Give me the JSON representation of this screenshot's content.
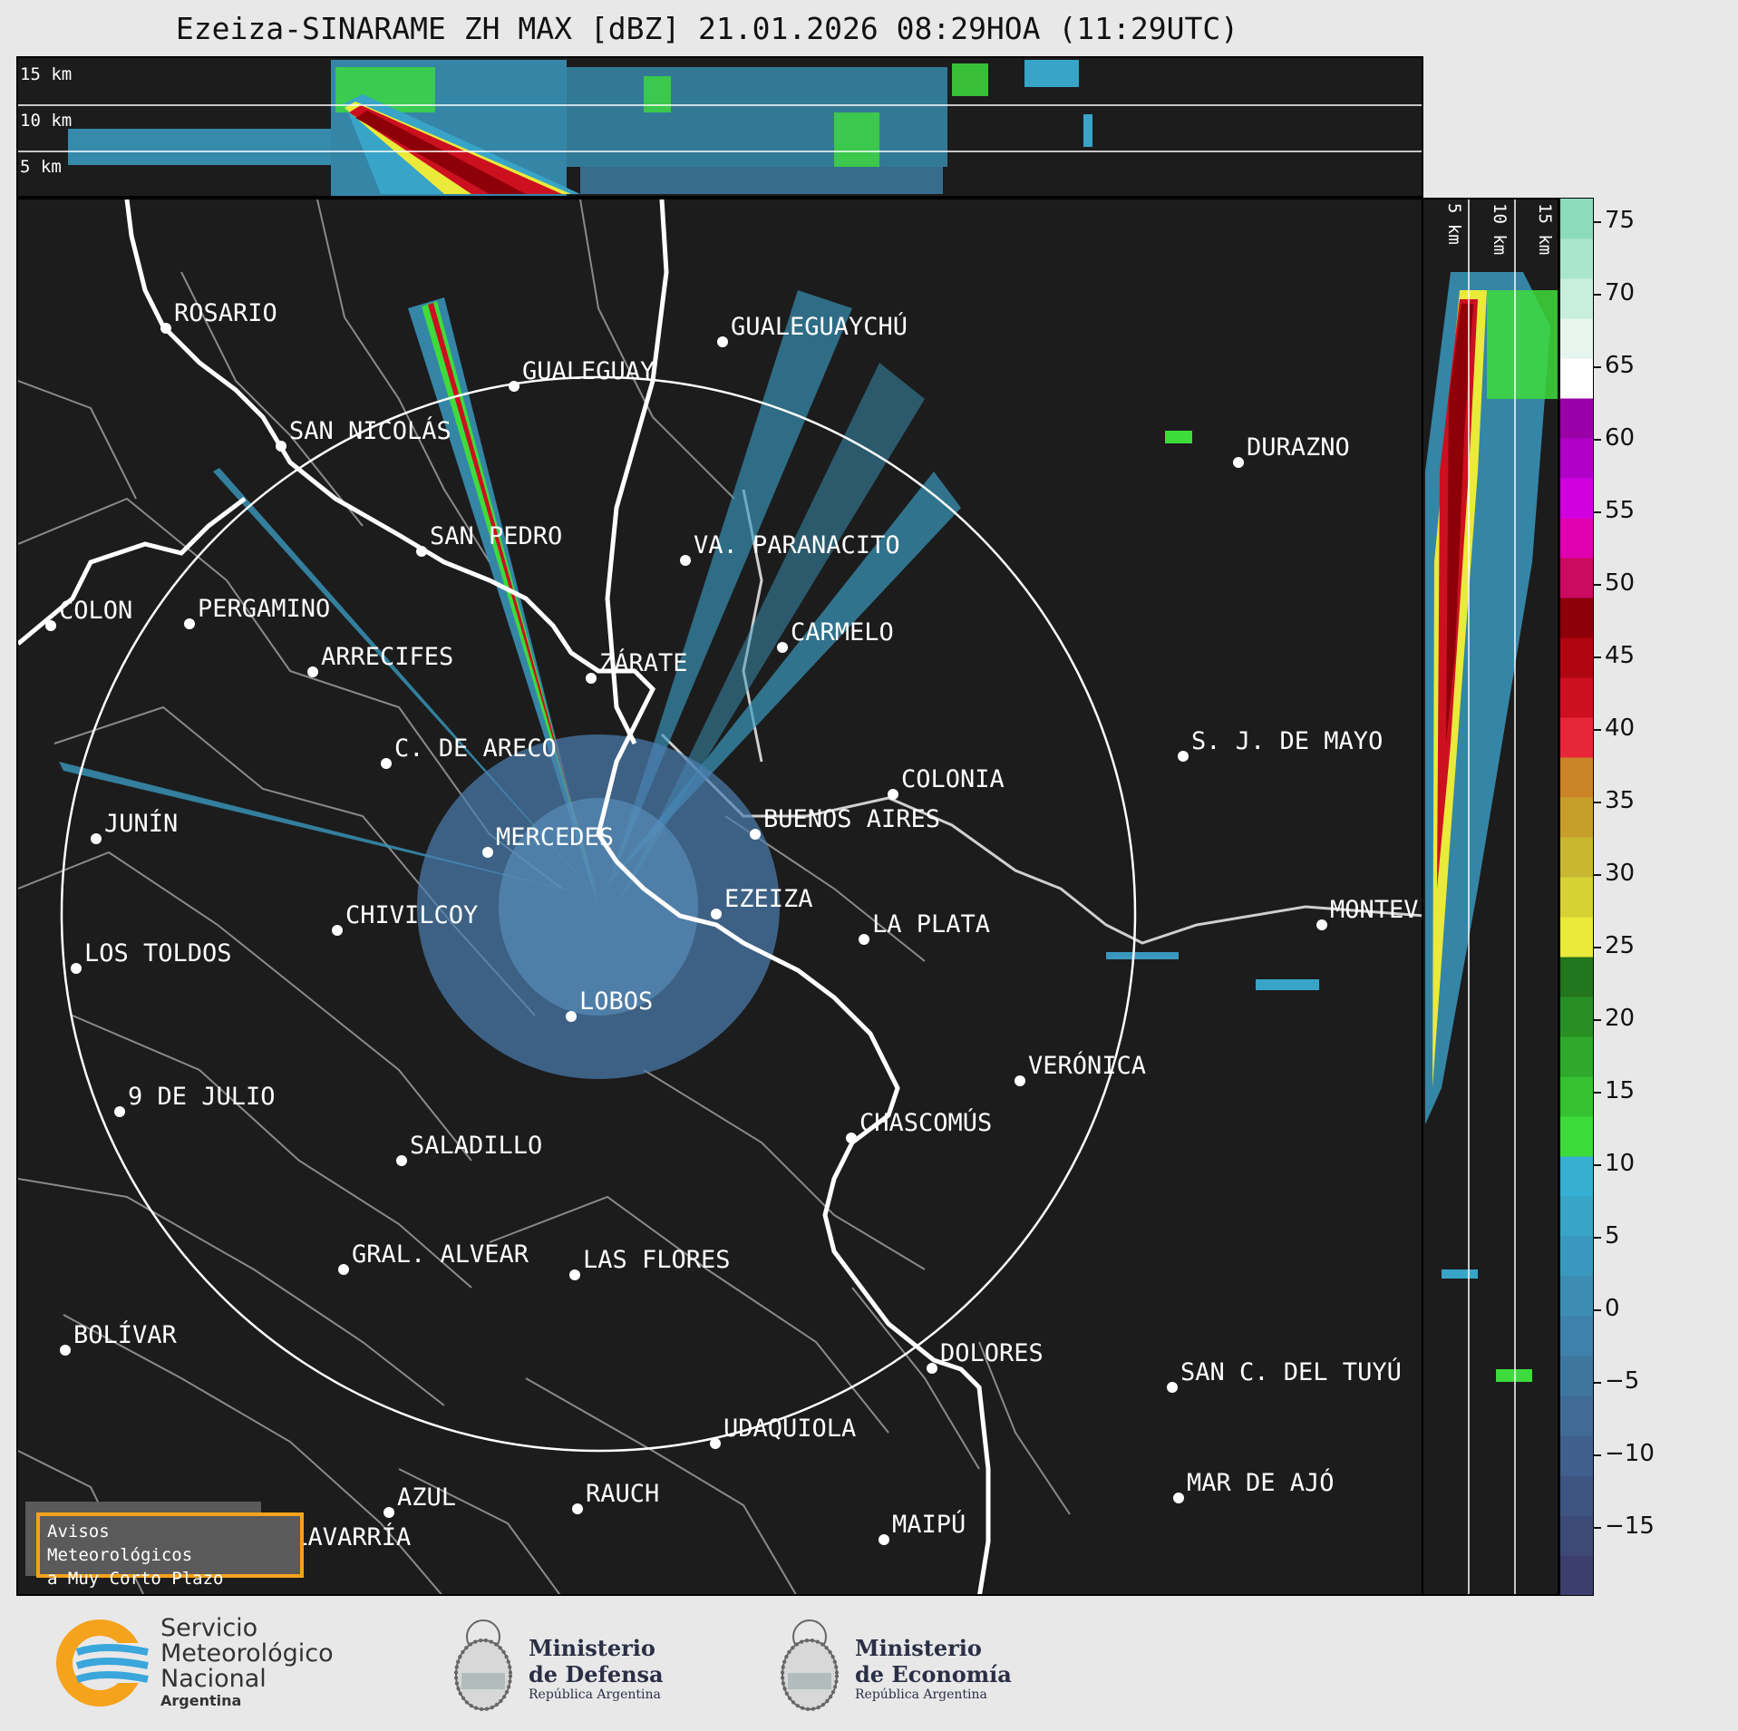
{
  "title": "Ezeiza-SINARAME ZH MAX [dBZ] 21.01.2026 08:29HOA (11:29UTC)",
  "height_labels_top": [
    "15 km",
    "10 km",
    "5 km"
  ],
  "height_labels_side": [
    "5 km",
    "10 km",
    "15 km"
  ],
  "colorbar": {
    "ticks": [
      "75",
      "70",
      "65",
      "60",
      "55",
      "50",
      "45",
      "40",
      "35",
      "30",
      "25",
      "20",
      "15",
      "10",
      "5",
      "0",
      "−5",
      "−10",
      "−15"
    ],
    "colors": [
      "#3c3f6e",
      "#3d4a78",
      "#3e5582",
      "#3f608c",
      "#406b96",
      "#3f76a0",
      "#3e81aa",
      "#3c8cb4",
      "#3a98be",
      "#38a4c8",
      "#35b0d2",
      "#3ddc3b",
      "#35c232",
      "#2fa82b",
      "#288f24",
      "#22761d",
      "#eaea3a",
      "#d6d235",
      "#c9b730",
      "#c89e2b",
      "#cc8526",
      "#e8263a",
      "#cc1020",
      "#b00612",
      "#8e0008",
      "#cc0a60",
      "#e000b0",
      "#d000e0",
      "#b000c8",
      "#9a00a8",
      "#ffffff",
      "#e6f5ee",
      "#c8eedc",
      "#aae6cc",
      "#8cdcbc"
    ]
  },
  "cities": [
    {
      "name": "ROSARIO"
    },
    {
      "name": "GUALEGUAYCHÚ"
    },
    {
      "name": "GUALEGUAY"
    },
    {
      "name": "SAN NICOLÁS"
    },
    {
      "name": "DURAZNO"
    },
    {
      "name": "SAN PEDRO"
    },
    {
      "name": "VA. PARANACITO"
    },
    {
      "name": "COLON"
    },
    {
      "name": "PERGAMINO"
    },
    {
      "name": "CARMELO"
    },
    {
      "name": "ARRECIFES"
    },
    {
      "name": "ZÁRATE"
    },
    {
      "name": "S. J. DE MAYO"
    },
    {
      "name": "C. DE ARECO"
    },
    {
      "name": "COLONIA"
    },
    {
      "name": "JUNÍN"
    },
    {
      "name": "BUENOS AIRES"
    },
    {
      "name": "MERCEDES"
    },
    {
      "name": "EZEIZA"
    },
    {
      "name": "MONTEV"
    },
    {
      "name": "CHIVILCOY"
    },
    {
      "name": "LA PLATA"
    },
    {
      "name": "LOS TOLDOS"
    },
    {
      "name": "LOBOS"
    },
    {
      "name": "VERÓNICA"
    },
    {
      "name": "9 DE JULIO"
    },
    {
      "name": "CHASCOMÚS"
    },
    {
      "name": "SALADILLO"
    },
    {
      "name": "GRAL. ALVEAR"
    },
    {
      "name": "LAS FLORES"
    },
    {
      "name": "BOLÍVAR"
    },
    {
      "name": "DOLORES"
    },
    {
      "name": "SAN C. DEL TUYÚ"
    },
    {
      "name": "UDAQUIOLA"
    },
    {
      "name": "RAUCH"
    },
    {
      "name": "MAR DE AJÓ"
    },
    {
      "name": "AZUL"
    },
    {
      "name": "OLAVARRÍA"
    },
    {
      "name": "MAIPÚ"
    }
  ],
  "notice": {
    "line1": "Avisos Meteorológicos",
    "line2": "a Muy Corto Plazo"
  },
  "footer": {
    "smn": [
      "Servicio",
      "Meteorológico",
      "Nacional",
      "Argentina"
    ],
    "defensa": [
      "Ministerio",
      "de Defensa",
      "República Argentina"
    ],
    "economia": [
      "Ministerio",
      "de Economía",
      "República Argentina"
    ]
  }
}
